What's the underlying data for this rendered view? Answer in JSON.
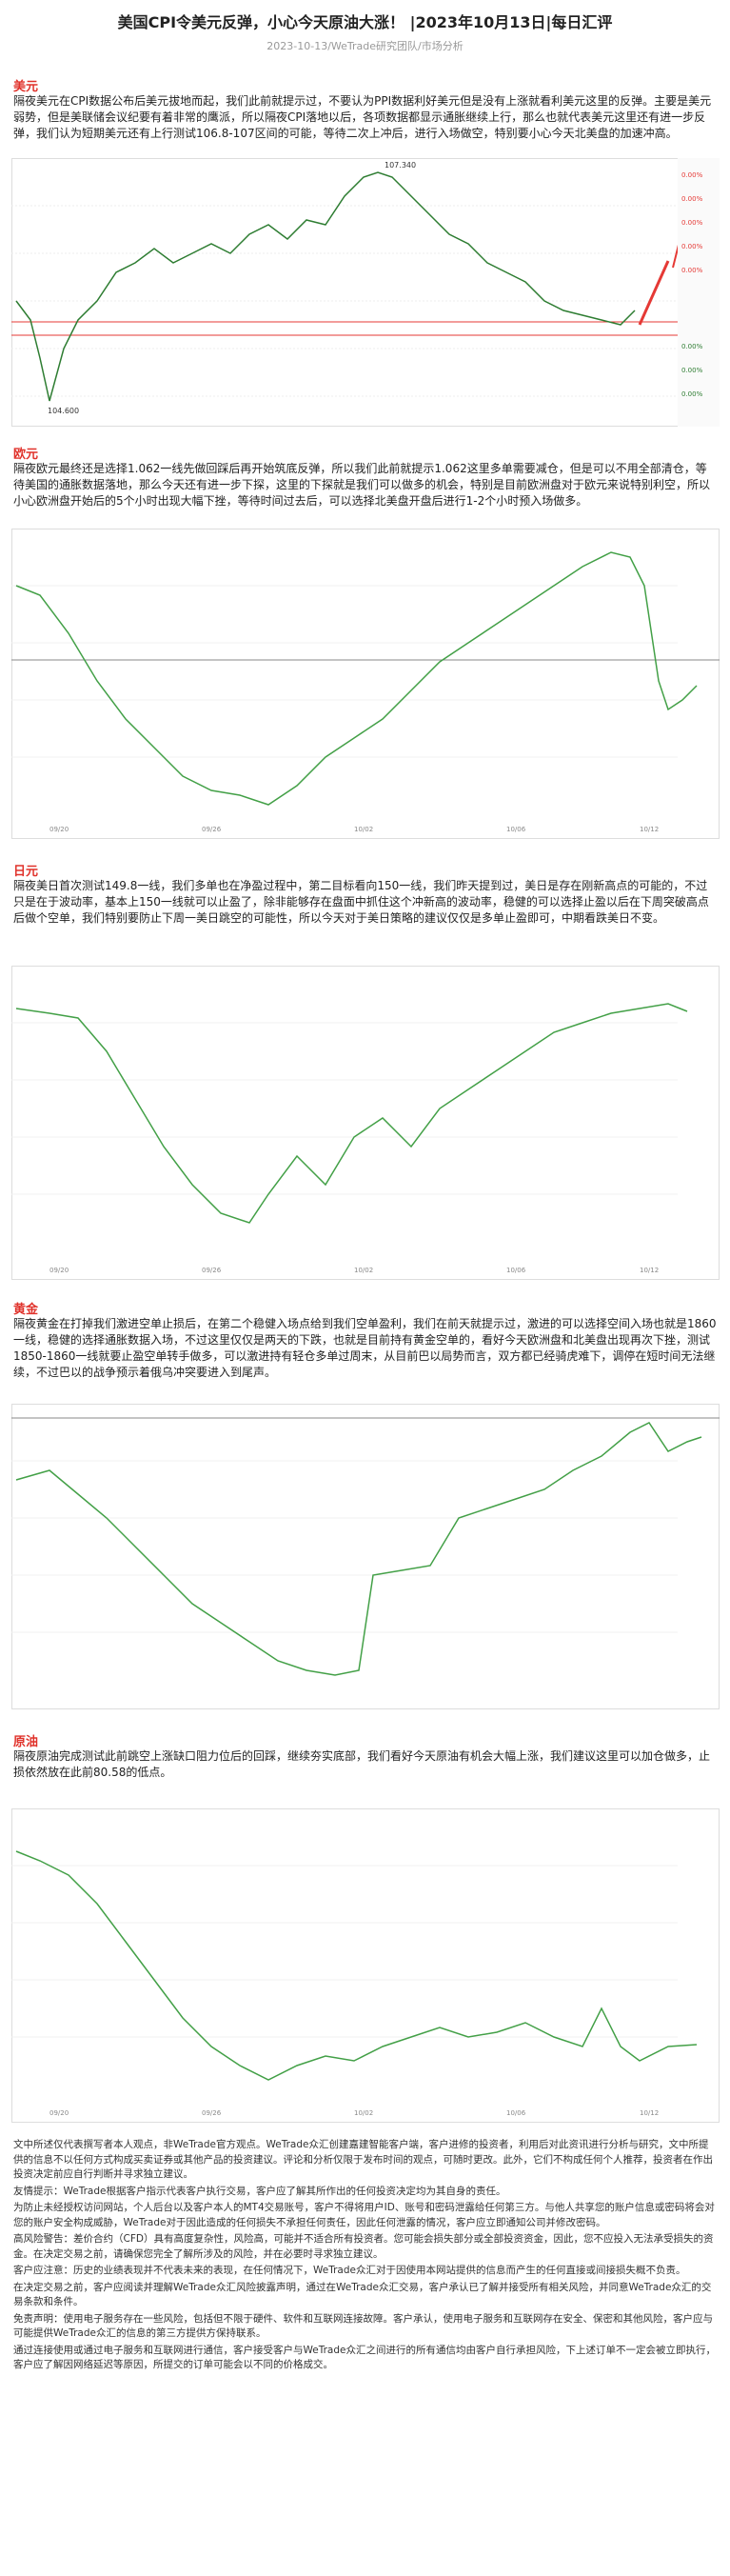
{
  "header": {
    "title": "美国CPI令美元反弹，小心今天原油大涨！ |2023年10月13日|每日汇评",
    "subtitle": "2023-10-13/WeTrade研究团队/市场分析"
  },
  "sections": [
    {
      "heading": "美元",
      "paragraph": "隔夜美元在CPI数据公布后美元拔地而起，我们此前就提示过，不要认为PPI数据利好美元但是没有上涨就看利美元这里的反弹。主要是美元弱势，但是美联储会议纪要有着非常的鹰派，所以隔夜CPI落地以后，各项数据都显示通胀继续上行，那么也就代表美元这里还有进一步反弹，我们认为短期美元还有上行测试106.8-107区间的可能，等待二次上冲后，进行入场做空，特别要小心今天北美盘的加速冲高。",
      "chart_labels": [
        "107.340",
        "104.600"
      ]
    },
    {
      "heading": "欧元",
      "paragraph": "隔夜欧元最终还是选择1.062一线先做回踩后再开始筑底反弹，所以我们此前就提示1.062这里多单需要减仓，但是可以不用全部清仓，等待美国的通胀数据落地，那么今天还有进一步下探，这里的下探就是我们可以做多的机会，特别是目前欧洲盘对于欧元来说特别利空，所以小心欧洲盘开始后的5个小时出现大幅下挫，等待时间过去后，可以选择北美盘开盘后进行1-2个小时预入场做多。"
    },
    {
      "heading": "日元",
      "paragraph": "隔夜美日首次测试149.8一线，我们多单也在净盈过程中，第二目标看向150一线，我们昨天提到过，美日是存在刚新高点的可能的，不过只是在于波动率，基本上150一线就可以止盈了，除非能够存在盘面中抓住这个冲新高的波动率，稳健的可以选择止盈以后在下周突破高点后做个空单，我们特别要防止下周一美日跳空的可能性，所以今天对于美日策略的建议仅仅是多单止盈即可，中期看跌美日不变。"
    },
    {
      "heading": "黄金",
      "paragraph": "隔夜黄金在打掉我们激进空单止损后，在第二个稳健入场点给到我们空单盈利，我们在前天就提示过，激进的可以选择空间入场也就是1860一线，稳健的选择通胀数据入场，不过这里仅仅是两天的下跌，也就是目前持有黄金空单的，看好今天欧洲盘和北美盘出现再次下挫，测试1850-1860一线就要止盈空单转手做多，可以激进持有轻仓多单过周末，从目前巴以局势而言，双方都已经骑虎难下，调停在短时间无法继续，不过巴以的战争预示着俄乌冲突要进入到尾声。"
    },
    {
      "heading": "原油",
      "paragraph": "隔夜原油完成测试此前跳空上涨缺口阻力位后的回踩，继续夯实底部，我们看好今天原油有机会大幅上涨，我们建议这里可以加仓做多，止损依然放在此前80.58的低点。"
    }
  ],
  "disclaimer": [
    "文中所述仅代表撰写者本人观点，非WeTrade官方观点。WeTrade众汇创建嘉建智能客户端，客户进修的投资者，利用后对此资讯进行分析与研究，文中所提供的信息不以任何方式构成买卖证券或其他产品的投资建议。评论和分析仅限于发布时间的观点，可随时更改。此外，它们不构成任何个人推荐，投资者在作出投资决定前应自行判断并寻求独立建议。",
    "友情提示：WeTrade根据客户指示代表客户执行交易，客户应了解其所作出的任何投资决定均为其自身的责任。",
    "为防止未经授权访问网站，个人后台以及客户本人的MT4交易账号，客户不得将用户ID、账号和密码泄露给任何第三方。与他人共享您的账户信息或密码将会对您的账户安全构成威胁，WeTrade对于因此造成的任何损失不承担任何责任，因此任何泄露的情况，客户应立即通知公司并修改密码。",
    "高风险警告：差价合约（CFD）具有高度复杂性，风险高，可能并不适合所有投资者。您可能会损失部分或全部投资资金，因此，您不应投入无法承受损失的资金。在决定交易之前，请确保您完全了解所涉及的风险，并在必要时寻求独立建议。",
    "客户应注意：历史的业绩表现并不代表未来的表现，在任何情况下，WeTrade众汇对于因使用本网站提供的信息而产生的任何直接或间接损失概不负责。",
    "在决定交易之前，客户应阅读并理解WeTrade众汇风险披露声明，通过在WeTrade众汇交易，客户承认已了解并接受所有相关风险，并同意WeTrade众汇的交易条款和条件。",
    "免责声明：使用电子服务存在一些风险，包括但不限于硬件、软件和互联网连接故障。客户承认，使用电子服务和互联网存在安全、保密和其他风险，客户应与可能提供WeTrade众汇的信息的第三方提供方保持联系。",
    "通过连接使用或通过电子服务和互联网进行通信，客户接受客户与WeTrade众汇之间进行的所有通信均由客户自行承担风险，下上述订单不一定会被立即执行，客户应了解因网络延迟等原因，所提交的订单可能会以不同的价格成交。"
  ]
}
